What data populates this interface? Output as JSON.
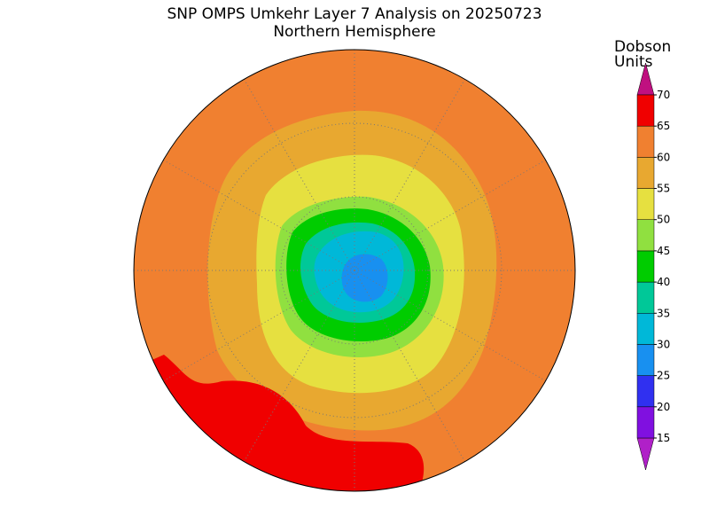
{
  "title": "SNP OMPS Umkehr Layer 7 Analysis on 20250723",
  "subtitle": "Northern Hemisphere",
  "colorbar": {
    "label": [
      "Dobson",
      "Units"
    ],
    "ticks": [
      15,
      20,
      25,
      30,
      35,
      40,
      45,
      50,
      55,
      60,
      65,
      70
    ],
    "colors": [
      "#b020c8",
      "#8010e0",
      "#3030f0",
      "#1890f0",
      "#00b8d8",
      "#00c898",
      "#00cc00",
      "#90e040",
      "#e6e040",
      "#e8a830",
      "#f08030",
      "#f00000",
      "#c01080"
    ]
  }
}
